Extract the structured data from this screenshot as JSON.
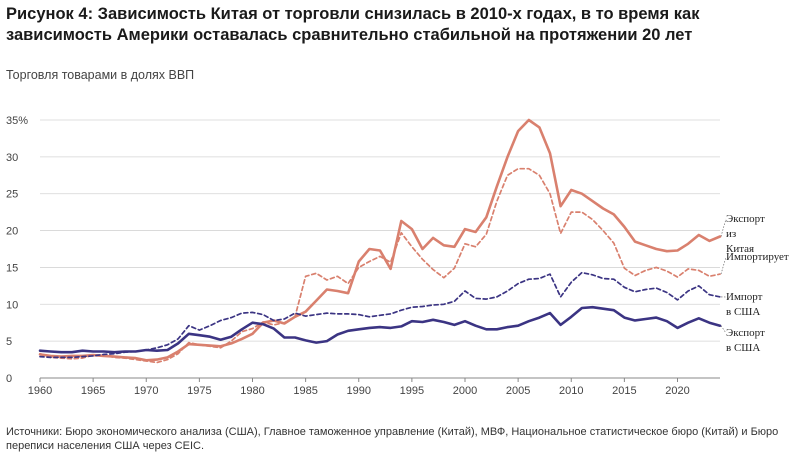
{
  "title_prefix": "Рисунок 4:",
  "title_text": "Зависимость Китая от торговли снизилась в 2010-х годах, в то время как зависимость Америки оставалась сравнительно стабильной на протяжении 20 лет",
  "subtitle": "Торговля товарами в долях ВВП",
  "source": "Источники: Бюро экономического анализа (США), Главное таможенное управление (Китай), МВФ, Национальное статистическое бюро (Китай) и Бюро переписи населения США через CEIC.",
  "colors": {
    "china": "#d9806e",
    "usa": "#3b3483",
    "grid": "#d4d4d4",
    "axis": "#888888"
  },
  "chart_data": {
    "type": "line",
    "title": "",
    "xlabel": "",
    "ylabel": "",
    "xlim": [
      1960,
      2024
    ],
    "ylim": [
      0,
      35
    ],
    "x_ticks": [
      1960,
      1965,
      1970,
      1975,
      1980,
      1985,
      1990,
      1995,
      2000,
      2005,
      2010,
      2015,
      2020
    ],
    "y_ticks": [
      {
        "value": 0,
        "label": "0"
      },
      {
        "value": 5,
        "label": "5"
      },
      {
        "value": 10,
        "label": "10"
      },
      {
        "value": 15,
        "label": "15"
      },
      {
        "value": 20,
        "label": "20"
      },
      {
        "value": 25,
        "label": "25"
      },
      {
        "value": 30,
        "label": "30"
      },
      {
        "value": 35,
        "label": "35%"
      }
    ],
    "grid": true,
    "legend": "end-of-line labels",
    "series": [
      {
        "name": "Экспорт из Китая",
        "label_lines": [
          "Экспорт",
          "из",
          "Китая"
        ],
        "color": "#d9806e",
        "style": "solid",
        "width": 2.6,
        "x": [
          1960,
          1961,
          1962,
          1963,
          1964,
          1965,
          1966,
          1967,
          1968,
          1969,
          1970,
          1971,
          1972,
          1973,
          1974,
          1975,
          1976,
          1977,
          1978,
          1979,
          1980,
          1981,
          1982,
          1983,
          1984,
          1985,
          1986,
          1987,
          1988,
          1989,
          1990,
          1991,
          1992,
          1993,
          1994,
          1995,
          1996,
          1997,
          1998,
          1999,
          2000,
          2001,
          2002,
          2003,
          2004,
          2005,
          2006,
          2007,
          2008,
          2009,
          2010,
          2011,
          2012,
          2013,
          2014,
          2015,
          2016,
          2017,
          2018,
          2019,
          2020,
          2021,
          2022,
          2023,
          2024
        ],
        "y": [
          3.2,
          3.0,
          2.9,
          3.0,
          3.0,
          3.1,
          3.0,
          2.9,
          2.8,
          2.7,
          2.4,
          2.5,
          2.8,
          3.6,
          4.6,
          4.5,
          4.4,
          4.3,
          4.7,
          5.3,
          6.0,
          7.5,
          7.8,
          7.4,
          8.3,
          9.0,
          10.5,
          12.0,
          11.8,
          11.5,
          15.8,
          17.5,
          17.3,
          14.8,
          21.3,
          20.2,
          17.5,
          19.0,
          18.0,
          17.8,
          20.2,
          19.8,
          21.8,
          26.0,
          30.0,
          33.5,
          35.0,
          34.0,
          30.5,
          23.3,
          25.5,
          25.0,
          24.0,
          23.0,
          22.2,
          20.5,
          18.5,
          18.0,
          17.5,
          17.2,
          17.3,
          18.2,
          19.4,
          18.6,
          19.2
        ]
      },
      {
        "name": "Импорт в Китай",
        "label_lines": [
          "Импортирует"
        ],
        "color": "#d9806e",
        "style": "dashed",
        "width": 1.7,
        "x": [
          1960,
          1961,
          1962,
          1963,
          1964,
          1965,
          1966,
          1967,
          1968,
          1969,
          1970,
          1971,
          1972,
          1973,
          1974,
          1975,
          1976,
          1977,
          1978,
          1979,
          1980,
          1981,
          1982,
          1983,
          1984,
          1985,
          1986,
          1987,
          1988,
          1989,
          1990,
          1991,
          1992,
          1993,
          1994,
          1995,
          1996,
          1997,
          1998,
          1999,
          2000,
          2001,
          2002,
          2003,
          2004,
          2005,
          2006,
          2007,
          2008,
          2009,
          2010,
          2011,
          2012,
          2013,
          2014,
          2015,
          2016,
          2017,
          2018,
          2019,
          2020,
          2021,
          2022,
          2023,
          2024
        ],
        "y": [
          3.3,
          2.8,
          2.7,
          2.6,
          2.7,
          3.1,
          3.1,
          2.8,
          2.7,
          2.5,
          2.3,
          2.1,
          2.5,
          3.3,
          4.8,
          4.5,
          4.3,
          4.1,
          5.0,
          6.3,
          6.7,
          7.6,
          7.2,
          7.5,
          8.3,
          13.8,
          14.2,
          13.3,
          13.8,
          12.8,
          15.0,
          15.8,
          16.5,
          15.7,
          19.7,
          17.8,
          16.1,
          14.7,
          13.6,
          14.9,
          18.2,
          17.8,
          19.5,
          24.0,
          27.5,
          28.4,
          28.4,
          27.5,
          25.0,
          19.6,
          22.5,
          22.5,
          21.5,
          20.0,
          18.3,
          14.9,
          13.9,
          14.6,
          15.0,
          14.5,
          13.7,
          14.8,
          14.6,
          13.8,
          14.1
        ]
      },
      {
        "name": "Импорт в США",
        "label_lines": [
          "Импорт",
          "в США"
        ],
        "color": "#3b3483",
        "style": "dashed",
        "width": 1.7,
        "x": [
          1960,
          1961,
          1962,
          1963,
          1964,
          1965,
          1966,
          1967,
          1968,
          1969,
          1970,
          1971,
          1972,
          1973,
          1974,
          1975,
          1976,
          1977,
          1978,
          1979,
          1980,
          1981,
          1982,
          1983,
          1984,
          1985,
          1986,
          1987,
          1988,
          1989,
          1990,
          1991,
          1992,
          1993,
          1994,
          1995,
          1996,
          1997,
          1998,
          1999,
          2000,
          2001,
          2002,
          2003,
          2004,
          2005,
          2006,
          2007,
          2008,
          2009,
          2010,
          2011,
          2012,
          2013,
          2014,
          2015,
          2016,
          2017,
          2018,
          2019,
          2020,
          2021,
          2022,
          2023,
          2024
        ],
        "y": [
          2.9,
          2.8,
          2.8,
          2.8,
          2.9,
          3.0,
          3.2,
          3.3,
          3.5,
          3.6,
          3.8,
          4.1,
          4.5,
          5.3,
          7.1,
          6.5,
          7.1,
          7.8,
          8.2,
          8.8,
          8.9,
          8.6,
          7.8,
          8.0,
          8.8,
          8.4,
          8.6,
          8.8,
          8.7,
          8.7,
          8.6,
          8.3,
          8.5,
          8.7,
          9.2,
          9.6,
          9.7,
          9.9,
          10.0,
          10.4,
          11.8,
          10.8,
          10.7,
          11.0,
          11.8,
          12.8,
          13.4,
          13.5,
          14.1,
          11.0,
          13.0,
          14.3,
          14.0,
          13.5,
          13.4,
          12.3,
          11.7,
          12.0,
          12.2,
          11.6,
          10.6,
          11.8,
          12.5,
          11.3,
          11.0
        ]
      },
      {
        "name": "Экспорт в США",
        "label_lines": [
          "Экспорт",
          "в США"
        ],
        "color": "#3b3483",
        "style": "solid",
        "width": 2.6,
        "x": [
          1960,
          1961,
          1962,
          1963,
          1964,
          1965,
          1966,
          1967,
          1968,
          1969,
          1970,
          1971,
          1972,
          1973,
          1974,
          1975,
          1976,
          1977,
          1978,
          1979,
          1980,
          1981,
          1982,
          1983,
          1984,
          1985,
          1986,
          1987,
          1988,
          1989,
          1990,
          1991,
          1992,
          1993,
          1994,
          1995,
          1996,
          1997,
          1998,
          1999,
          2000,
          2001,
          2002,
          2003,
          2004,
          2005,
          2006,
          2007,
          2008,
          2009,
          2010,
          2011,
          2012,
          2013,
          2014,
          2015,
          2016,
          2017,
          2018,
          2019,
          2020,
          2021,
          2022,
          2023,
          2024
        ],
        "y": [
          3.7,
          3.6,
          3.5,
          3.5,
          3.7,
          3.6,
          3.6,
          3.5,
          3.6,
          3.6,
          3.8,
          3.7,
          3.8,
          4.7,
          6.0,
          5.8,
          5.6,
          5.2,
          5.6,
          6.6,
          7.5,
          7.3,
          6.7,
          5.5,
          5.5,
          5.1,
          4.8,
          5.0,
          5.9,
          6.4,
          6.6,
          6.8,
          6.9,
          6.8,
          7.0,
          7.7,
          7.6,
          7.9,
          7.6,
          7.2,
          7.7,
          7.1,
          6.6,
          6.6,
          6.9,
          7.1,
          7.7,
          8.2,
          8.8,
          7.2,
          8.3,
          9.5,
          9.6,
          9.4,
          9.2,
          8.2,
          7.8,
          8.0,
          8.2,
          7.7,
          6.8,
          7.5,
          8.1,
          7.5,
          7.1
        ]
      }
    ]
  }
}
